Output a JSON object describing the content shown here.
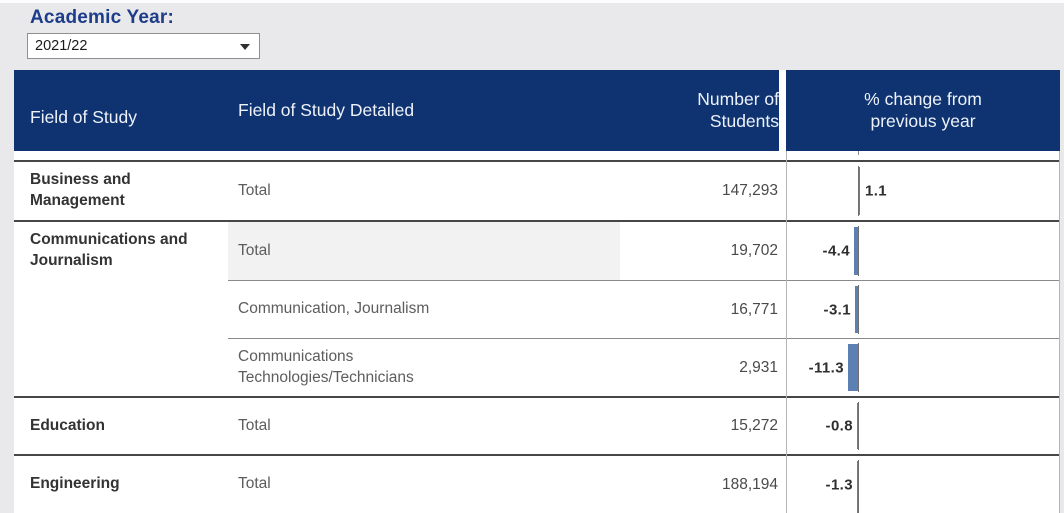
{
  "filter": {
    "label": "Academic Year:",
    "value": "2021/22"
  },
  "table": {
    "header": {
      "field": "Field of Study",
      "detailed": "Field of Study Detailed",
      "students": "Number of Students",
      "pct_change": "% change from previous year"
    },
    "rows": [
      {
        "field": "Business and Management",
        "detailed": "Total",
        "students": "147,293",
        "pct_change": 1.1,
        "pct_label": "1.1"
      },
      {
        "field": "Communications and Journalism",
        "detailed": "Total",
        "students": "19,702",
        "pct_change": -4.4,
        "pct_label": "-4.4"
      },
      {
        "field": "",
        "detailed": "Communication, Journalism",
        "students": "16,771",
        "pct_change": -3.1,
        "pct_label": "-3.1"
      },
      {
        "field": "",
        "detailed": "Communications Technologies/Technicians",
        "students": "2,931",
        "pct_change": -11.3,
        "pct_label": "-11.3"
      },
      {
        "field": "Education",
        "detailed": "Total",
        "students": "15,272",
        "pct_change": -0.8,
        "pct_label": "-0.8"
      },
      {
        "field": "Engineering",
        "detailed": "Total",
        "students": "188,194",
        "pct_change": -1.3,
        "pct_label": "-1.3"
      }
    ],
    "colors": {
      "header_background": "#0f3370",
      "bar": "#5d80b2",
      "filter_label": "#1d3c8a",
      "highlight_cell": "#f2f2f3"
    }
  },
  "chart_data": {
    "type": "bar",
    "orientation": "horizontal",
    "title": "% change from previous year",
    "categories": [
      "Business and Management - Total",
      "Communications and Journalism - Total",
      "Communications and Journalism - Communication, Journalism",
      "Communications and Journalism - Communications Technologies/Technicians",
      "Education - Total",
      "Engineering - Total"
    ],
    "values": [
      1.1,
      -4.4,
      -3.1,
      -11.3,
      -0.8,
      -1.3
    ],
    "students": [
      147293,
      19702,
      16771,
      2931,
      15272,
      188194
    ],
    "academic_year": "2021/22",
    "bar_color": "#5d80b2",
    "zero_axis": true
  }
}
